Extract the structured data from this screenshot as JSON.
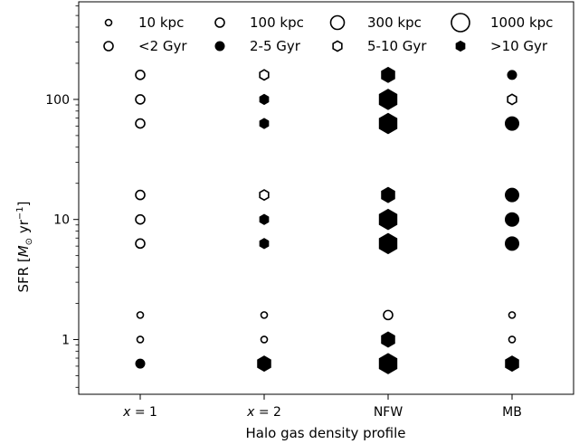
{
  "chart_data": {
    "type": "scatter",
    "xlabel": "Halo gas density profile",
    "ylabel": "SFR [M⊙ yr−1]",
    "ylabel_parts": {
      "prefix": "SFR [",
      "symbol": "M",
      "sub": "⊙",
      "unit": " yr",
      "exp": "−1",
      "suffix": "]"
    },
    "yscale": "log",
    "ylim": [
      0.35,
      650
    ],
    "categories": [
      {
        "label_var": "x",
        "label_rest": " = 1"
      },
      {
        "label_var": "x",
        "label_rest": " = 2"
      },
      {
        "label": "NFW"
      },
      {
        "label": "MB"
      }
    ],
    "category_labels": [
      "x = 1",
      "x = 2",
      "NFW",
      "MB"
    ],
    "yticks": [
      {
        "value": 1,
        "label": "1"
      },
      {
        "value": 10,
        "label": "10"
      },
      {
        "value": 100,
        "label": "100"
      }
    ],
    "legend_placement": "top",
    "legend": [
      {
        "label": "10 kpc",
        "marker": "circle",
        "fill": "open",
        "size_kpc": 10
      },
      {
        "label": "100 kpc",
        "marker": "circle",
        "fill": "open",
        "size_kpc": 100
      },
      {
        "label": "300 kpc",
        "marker": "circle",
        "fill": "open",
        "size_kpc": 300
      },
      {
        "label": "1000 kpc",
        "marker": "circle",
        "fill": "open",
        "size_kpc": 1000
      },
      {
        "label": "<2 Gyr",
        "marker": "circle",
        "fill": "open",
        "size_kpc": 100
      },
      {
        "label": "2-5 Gyr",
        "marker": "circle",
        "fill": "filled",
        "size_kpc": 100
      },
      {
        "label": "5-10 Gyr",
        "marker": "hexagon",
        "fill": "open",
        "size_kpc": 100
      },
      {
        "label": ">10 Gyr",
        "marker": "hexagon",
        "fill": "filled",
        "size_kpc": 100
      }
    ],
    "points": [
      {
        "category": 0,
        "sfr": 160,
        "size_kpc": 100,
        "marker": "circle",
        "fill": "open"
      },
      {
        "category": 0,
        "sfr": 100,
        "size_kpc": 100,
        "marker": "circle",
        "fill": "open"
      },
      {
        "category": 0,
        "sfr": 63,
        "size_kpc": 100,
        "marker": "circle",
        "fill": "open"
      },
      {
        "category": 0,
        "sfr": 16,
        "size_kpc": 100,
        "marker": "circle",
        "fill": "open"
      },
      {
        "category": 0,
        "sfr": 10,
        "size_kpc": 100,
        "marker": "circle",
        "fill": "open"
      },
      {
        "category": 0,
        "sfr": 6.3,
        "size_kpc": 100,
        "marker": "circle",
        "fill": "open"
      },
      {
        "category": 0,
        "sfr": 1.6,
        "size_kpc": 10,
        "marker": "circle",
        "fill": "open"
      },
      {
        "category": 0,
        "sfr": 1,
        "size_kpc": 10,
        "marker": "circle",
        "fill": "open"
      },
      {
        "category": 0,
        "sfr": 0.63,
        "size_kpc": 100,
        "marker": "circle",
        "fill": "filled"
      },
      {
        "category": 1,
        "sfr": 160,
        "size_kpc": 100,
        "marker": "hexagon",
        "fill": "open"
      },
      {
        "category": 1,
        "sfr": 100,
        "size_kpc": 100,
        "marker": "hexagon",
        "fill": "filled"
      },
      {
        "category": 1,
        "sfr": 63,
        "size_kpc": 100,
        "marker": "hexagon",
        "fill": "filled"
      },
      {
        "category": 1,
        "sfr": 16,
        "size_kpc": 100,
        "marker": "hexagon",
        "fill": "open"
      },
      {
        "category": 1,
        "sfr": 10,
        "size_kpc": 100,
        "marker": "hexagon",
        "fill": "filled"
      },
      {
        "category": 1,
        "sfr": 6.3,
        "size_kpc": 100,
        "marker": "hexagon",
        "fill": "filled"
      },
      {
        "category": 1,
        "sfr": 1.6,
        "size_kpc": 10,
        "marker": "circle",
        "fill": "open"
      },
      {
        "category": 1,
        "sfr": 1,
        "size_kpc": 10,
        "marker": "circle",
        "fill": "open"
      },
      {
        "category": 1,
        "sfr": 0.63,
        "size_kpc": 300,
        "marker": "hexagon",
        "fill": "filled"
      },
      {
        "category": 2,
        "sfr": 160,
        "size_kpc": 300,
        "marker": "hexagon",
        "fill": "filled"
      },
      {
        "category": 2,
        "sfr": 100,
        "size_kpc": 1000,
        "marker": "hexagon",
        "fill": "filled"
      },
      {
        "category": 2,
        "sfr": 63,
        "size_kpc": 1000,
        "marker": "hexagon",
        "fill": "filled"
      },
      {
        "category": 2,
        "sfr": 16,
        "size_kpc": 300,
        "marker": "hexagon",
        "fill": "filled"
      },
      {
        "category": 2,
        "sfr": 10,
        "size_kpc": 1000,
        "marker": "hexagon",
        "fill": "filled"
      },
      {
        "category": 2,
        "sfr": 6.3,
        "size_kpc": 1000,
        "marker": "hexagon",
        "fill": "filled"
      },
      {
        "category": 2,
        "sfr": 1.6,
        "size_kpc": 100,
        "marker": "circle",
        "fill": "open"
      },
      {
        "category": 2,
        "sfr": 1,
        "size_kpc": 300,
        "marker": "hexagon",
        "fill": "filled"
      },
      {
        "category": 2,
        "sfr": 0.63,
        "size_kpc": 1000,
        "marker": "hexagon",
        "fill": "filled"
      },
      {
        "category": 3,
        "sfr": 160,
        "size_kpc": 100,
        "marker": "circle",
        "fill": "filled"
      },
      {
        "category": 3,
        "sfr": 100,
        "size_kpc": 100,
        "marker": "hexagon",
        "fill": "open"
      },
      {
        "category": 3,
        "sfr": 63,
        "size_kpc": 300,
        "marker": "circle",
        "fill": "filled"
      },
      {
        "category": 3,
        "sfr": 16,
        "size_kpc": 300,
        "marker": "circle",
        "fill": "filled"
      },
      {
        "category": 3,
        "sfr": 10,
        "size_kpc": 300,
        "marker": "circle",
        "fill": "filled"
      },
      {
        "category": 3,
        "sfr": 6.3,
        "size_kpc": 300,
        "marker": "circle",
        "fill": "filled"
      },
      {
        "category": 3,
        "sfr": 1.6,
        "size_kpc": 10,
        "marker": "circle",
        "fill": "open"
      },
      {
        "category": 3,
        "sfr": 1,
        "size_kpc": 10,
        "marker": "circle",
        "fill": "open"
      },
      {
        "category": 3,
        "sfr": 0.63,
        "size_kpc": 300,
        "marker": "hexagon",
        "fill": "filled"
      }
    ]
  }
}
